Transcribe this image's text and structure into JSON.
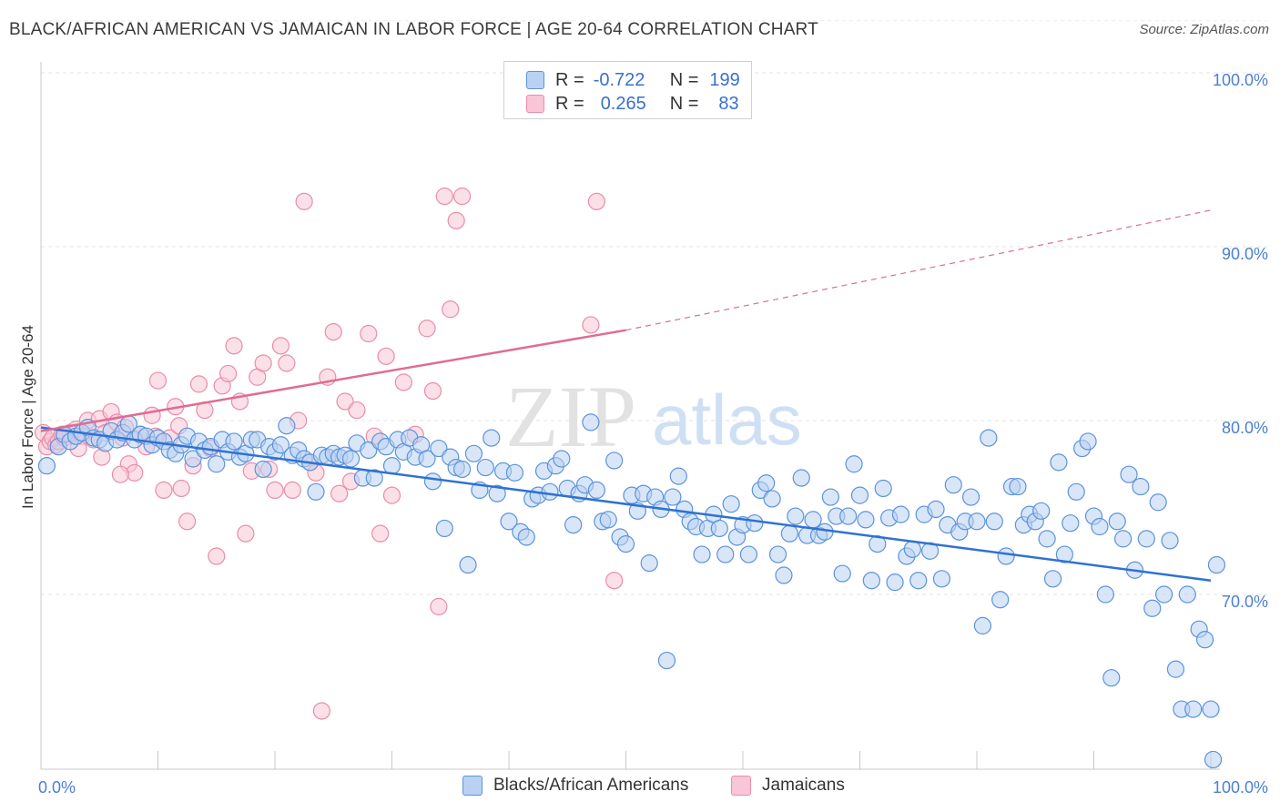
{
  "header": {
    "title": "BLACK/AFRICAN AMERICAN VS JAMAICAN IN LABOR FORCE | AGE 20-64 CORRELATION CHART",
    "source": "Source: ZipAtlas.com"
  },
  "legend": {
    "rows": [
      {
        "r_label": "R =",
        "r_value": "-0.722",
        "n_label": "N =",
        "n_value": "199"
      },
      {
        "r_label": "R =",
        "r_value": "0.265",
        "n_label": "N =",
        "n_value": "83"
      }
    ],
    "series": [
      "Blacks/African Americans",
      "Jamaicans"
    ]
  },
  "colors": {
    "blue_fill": "#b9d2f3",
    "blue_stroke": "#5b93dc",
    "blue_line": "#2f72d2",
    "pink_fill": "#f8c6d6",
    "pink_stroke": "#ea8caa",
    "pink_line": "#e06b93",
    "tick_label": "#4a7fd6"
  },
  "watermark": {
    "zip": "ZIP",
    "atlas": "atlas"
  },
  "chart_data": {
    "type": "scatter",
    "ylabel": "In Labor Force | Age 20-64",
    "xlabel": "",
    "x_tick_labels": [
      "0.0%",
      "100.0%"
    ],
    "y_tick_labels": [
      "70.0%",
      "80.0%",
      "90.0%",
      "100.0%"
    ],
    "y_ticks": [
      70,
      80,
      90,
      100
    ],
    "xlim": [
      0,
      100
    ],
    "ylim": [
      60,
      103
    ],
    "grid": true,
    "series": [
      {
        "name": "Blacks/African Americans",
        "color": "#5b93dc",
        "points": [
          [
            0.5,
            77.4
          ],
          [
            1.5,
            78.5
          ],
          [
            2,
            79.2
          ],
          [
            2.5,
            78.8
          ],
          [
            3,
            79.1
          ],
          [
            3.5,
            79.3
          ],
          [
            4,
            79.6
          ],
          [
            4.5,
            79.0
          ],
          [
            5,
            78.9
          ],
          [
            5.5,
            78.7
          ],
          [
            6,
            79.4
          ],
          [
            6.5,
            78.9
          ],
          [
            7,
            79.3
          ],
          [
            7.5,
            79.8
          ],
          [
            8,
            78.9
          ],
          [
            8.5,
            79.2
          ],
          [
            9,
            79.1
          ],
          [
            9.5,
            78.6
          ],
          [
            10,
            79.0
          ],
          [
            10.5,
            78.8
          ],
          [
            11,
            78.3
          ],
          [
            11.5,
            78.1
          ],
          [
            12,
            78.6
          ],
          [
            12.5,
            79.1
          ],
          [
            13,
            77.8
          ],
          [
            13.5,
            78.8
          ],
          [
            14,
            78.3
          ],
          [
            14.5,
            78.5
          ],
          [
            15,
            77.5
          ],
          [
            15.5,
            78.9
          ],
          [
            16,
            78.2
          ],
          [
            16.5,
            78.8
          ],
          [
            17,
            77.9
          ],
          [
            17.5,
            78.1
          ],
          [
            18,
            78.9
          ],
          [
            18.5,
            78.9
          ],
          [
            19,
            77.2
          ],
          [
            19.5,
            78.5
          ],
          [
            20,
            78.2
          ],
          [
            20.5,
            78.6
          ],
          [
            21,
            79.7
          ],
          [
            21.5,
            78.0
          ],
          [
            22,
            78.3
          ],
          [
            22.5,
            77.8
          ],
          [
            23,
            77.6
          ],
          [
            23.5,
            75.9
          ],
          [
            24,
            78.0
          ],
          [
            24.5,
            77.9
          ],
          [
            25,
            78.1
          ],
          [
            25.5,
            77.9
          ],
          [
            26,
            78.0
          ],
          [
            26.5,
            77.8
          ],
          [
            27,
            78.7
          ],
          [
            27.5,
            76.7
          ],
          [
            28,
            78.3
          ],
          [
            28.5,
            76.7
          ],
          [
            29,
            78.8
          ],
          [
            29.5,
            78.5
          ],
          [
            30,
            77.4
          ],
          [
            30.5,
            78.9
          ],
          [
            31,
            78.2
          ],
          [
            31.5,
            79.0
          ],
          [
            32,
            77.9
          ],
          [
            32.5,
            78.6
          ],
          [
            33,
            77.8
          ],
          [
            33.5,
            76.5
          ],
          [
            34,
            78.4
          ],
          [
            34.5,
            73.8
          ],
          [
            35,
            77.9
          ],
          [
            35.5,
            77.3
          ],
          [
            36,
            77.2
          ],
          [
            36.5,
            71.7
          ],
          [
            37,
            78.1
          ],
          [
            37.5,
            76.0
          ],
          [
            38,
            77.3
          ],
          [
            38.5,
            79.0
          ],
          [
            39,
            75.8
          ],
          [
            39.5,
            77.1
          ],
          [
            40,
            74.2
          ],
          [
            40.5,
            77.0
          ],
          [
            41,
            73.6
          ],
          [
            41.5,
            73.3
          ],
          [
            42,
            75.5
          ],
          [
            42.5,
            75.7
          ],
          [
            43,
            77.1
          ],
          [
            43.5,
            75.9
          ],
          [
            44,
            77.4
          ],
          [
            44.5,
            77.8
          ],
          [
            45,
            76.1
          ],
          [
            45.5,
            74.0
          ],
          [
            46,
            75.8
          ],
          [
            46.5,
            76.3
          ],
          [
            47,
            79.9
          ],
          [
            47.5,
            76.0
          ],
          [
            48,
            74.2
          ],
          [
            48.5,
            74.3
          ],
          [
            49,
            77.7
          ],
          [
            49.5,
            73.3
          ],
          [
            50,
            72.9
          ],
          [
            50.5,
            75.7
          ],
          [
            51,
            74.8
          ],
          [
            51.5,
            75.8
          ],
          [
            52,
            71.8
          ],
          [
            52.5,
            75.6
          ],
          [
            53,
            74.9
          ],
          [
            53.5,
            66.2
          ],
          [
            54,
            75.6
          ],
          [
            54.5,
            76.8
          ],
          [
            55,
            74.9
          ],
          [
            55.5,
            74.2
          ],
          [
            56,
            73.9
          ],
          [
            56.5,
            72.3
          ],
          [
            57,
            73.8
          ],
          [
            57.5,
            74.6
          ],
          [
            58,
            73.8
          ],
          [
            58.5,
            72.3
          ],
          [
            59,
            75.2
          ],
          [
            59.5,
            73.3
          ],
          [
            60,
            74.0
          ],
          [
            60.5,
            72.3
          ],
          [
            61,
            74.1
          ],
          [
            61.5,
            76.0
          ],
          [
            62,
            76.4
          ],
          [
            62.5,
            75.5
          ],
          [
            63,
            72.3
          ],
          [
            63.5,
            71.1
          ],
          [
            64,
            73.5
          ],
          [
            64.5,
            74.5
          ],
          [
            65,
            76.7
          ],
          [
            65.5,
            73.4
          ],
          [
            66,
            74.3
          ],
          [
            66.5,
            73.4
          ],
          [
            67,
            73.6
          ],
          [
            67.5,
            75.6
          ],
          [
            68,
            74.5
          ],
          [
            68.5,
            71.2
          ],
          [
            69,
            74.5
          ],
          [
            69.5,
            77.5
          ],
          [
            70,
            75.7
          ],
          [
            70.5,
            74.3
          ],
          [
            71,
            70.8
          ],
          [
            71.5,
            72.9
          ],
          [
            72,
            76.1
          ],
          [
            72.5,
            74.4
          ],
          [
            73,
            70.7
          ],
          [
            73.5,
            74.6
          ],
          [
            74,
            72.2
          ],
          [
            74.5,
            72.6
          ],
          [
            75,
            70.8
          ],
          [
            75.5,
            74.6
          ],
          [
            76,
            72.5
          ],
          [
            76.5,
            74.9
          ],
          [
            77,
            70.9
          ],
          [
            77.5,
            74.0
          ],
          [
            78,
            76.3
          ],
          [
            78.5,
            73.6
          ],
          [
            79,
            74.2
          ],
          [
            79.5,
            75.6
          ],
          [
            80,
            74.2
          ],
          [
            80.5,
            68.2
          ],
          [
            81,
            79.0
          ],
          [
            81.5,
            74.2
          ],
          [
            82,
            69.7
          ],
          [
            82.5,
            72.2
          ],
          [
            83,
            76.2
          ],
          [
            83.5,
            76.2
          ],
          [
            84,
            74.0
          ],
          [
            84.5,
            74.6
          ],
          [
            85,
            74.2
          ],
          [
            85.5,
            74.8
          ],
          [
            86,
            73.2
          ],
          [
            86.5,
            70.9
          ],
          [
            87,
            77.6
          ],
          [
            87.5,
            72.3
          ],
          [
            88,
            74.1
          ],
          [
            88.5,
            75.9
          ],
          [
            89,
            78.4
          ],
          [
            89.5,
            78.8
          ],
          [
            90,
            74.5
          ],
          [
            90.5,
            73.9
          ],
          [
            91,
            70.0
          ],
          [
            91.5,
            65.2
          ],
          [
            92,
            74.2
          ],
          [
            92.5,
            73.2
          ],
          [
            93,
            76.9
          ],
          [
            93.5,
            71.4
          ],
          [
            94,
            76.2
          ],
          [
            94.5,
            73.2
          ],
          [
            95,
            69.2
          ],
          [
            95.5,
            75.3
          ],
          [
            96,
            70.0
          ],
          [
            96.5,
            73.1
          ],
          [
            97,
            65.7
          ],
          [
            97.5,
            63.4
          ],
          [
            98,
            70.0
          ],
          [
            98.5,
            63.4
          ],
          [
            99,
            68.0
          ],
          [
            99.5,
            67.4
          ],
          [
            100,
            63.4
          ],
          [
            100.5,
            71.7
          ],
          [
            100.2,
            60.5
          ]
        ],
        "trend": [
          [
            0,
            79.6
          ],
          [
            100,
            70.8
          ]
        ]
      },
      {
        "name": "Jamaicans",
        "color": "#ea8caa",
        "points": [
          [
            0.2,
            79.3
          ],
          [
            0.5,
            78.5
          ],
          [
            0.8,
            78.8
          ],
          [
            1,
            79.0
          ],
          [
            1.3,
            78.6
          ],
          [
            1.5,
            78.8
          ],
          [
            2,
            79.0
          ],
          [
            2.5,
            79.3
          ],
          [
            3,
            79.5
          ],
          [
            3.5,
            79.1
          ],
          [
            4,
            80.0
          ],
          [
            4.5,
            78.9
          ],
          [
            5,
            80.1
          ],
          [
            5.5,
            79.3
          ],
          [
            6,
            80.5
          ],
          [
            6.5,
            79.9
          ],
          [
            7,
            79.0
          ],
          [
            7.5,
            77.5
          ],
          [
            8,
            77.0
          ],
          [
            8.5,
            79.2
          ],
          [
            9,
            78.5
          ],
          [
            9.5,
            80.3
          ],
          [
            10,
            82.3
          ],
          [
            10.5,
            76.0
          ],
          [
            11,
            79.0
          ],
          [
            11.5,
            80.8
          ],
          [
            12,
            76.1
          ],
          [
            12.5,
            74.2
          ],
          [
            13,
            77.4
          ],
          [
            13.5,
            82.1
          ],
          [
            14,
            80.6
          ],
          [
            14.5,
            78.4
          ],
          [
            15,
            72.2
          ],
          [
            15.5,
            82.0
          ],
          [
            16,
            82.7
          ],
          [
            16.5,
            84.3
          ],
          [
            17,
            81.1
          ],
          [
            17.5,
            73.5
          ],
          [
            18,
            77.1
          ],
          [
            18.5,
            82.5
          ],
          [
            19,
            83.3
          ],
          [
            19.5,
            77.2
          ],
          [
            20,
            76.0
          ],
          [
            20.5,
            84.3
          ],
          [
            21,
            83.3
          ],
          [
            21.5,
            76.0
          ],
          [
            22,
            80.0
          ],
          [
            22.5,
            92.6
          ],
          [
            23,
            77.6
          ],
          [
            23.5,
            77.0
          ],
          [
            24,
            63.3
          ],
          [
            24.5,
            82.5
          ],
          [
            25,
            85.1
          ],
          [
            25.5,
            75.8
          ],
          [
            26,
            81.1
          ],
          [
            26.5,
            76.5
          ],
          [
            27,
            80.6
          ],
          [
            28,
            85.0
          ],
          [
            28.5,
            79.1
          ],
          [
            29,
            73.5
          ],
          [
            29.5,
            83.7
          ],
          [
            30,
            75.7
          ],
          [
            31,
            82.2
          ],
          [
            32,
            79.2
          ],
          [
            33,
            85.3
          ],
          [
            33.5,
            81.7
          ],
          [
            34,
            69.3
          ],
          [
            34.5,
            92.9
          ],
          [
            35,
            86.4
          ],
          [
            35.5,
            91.5
          ],
          [
            36,
            92.9
          ],
          [
            47,
            85.5
          ],
          [
            47.5,
            92.6
          ],
          [
            49,
            70.8
          ],
          [
            5.2,
            77.9
          ],
          [
            3.2,
            78.4
          ],
          [
            1.8,
            79.2
          ],
          [
            7.2,
            79.6
          ],
          [
            11.8,
            79.7
          ],
          [
            9.8,
            79.1
          ],
          [
            6.8,
            76.9
          ]
        ],
        "trend": [
          [
            0,
            79.4
          ],
          [
            50,
            85.2
          ]
        ],
        "trend_extended": [
          [
            50,
            85.2
          ],
          [
            100,
            92.1
          ]
        ]
      }
    ]
  }
}
